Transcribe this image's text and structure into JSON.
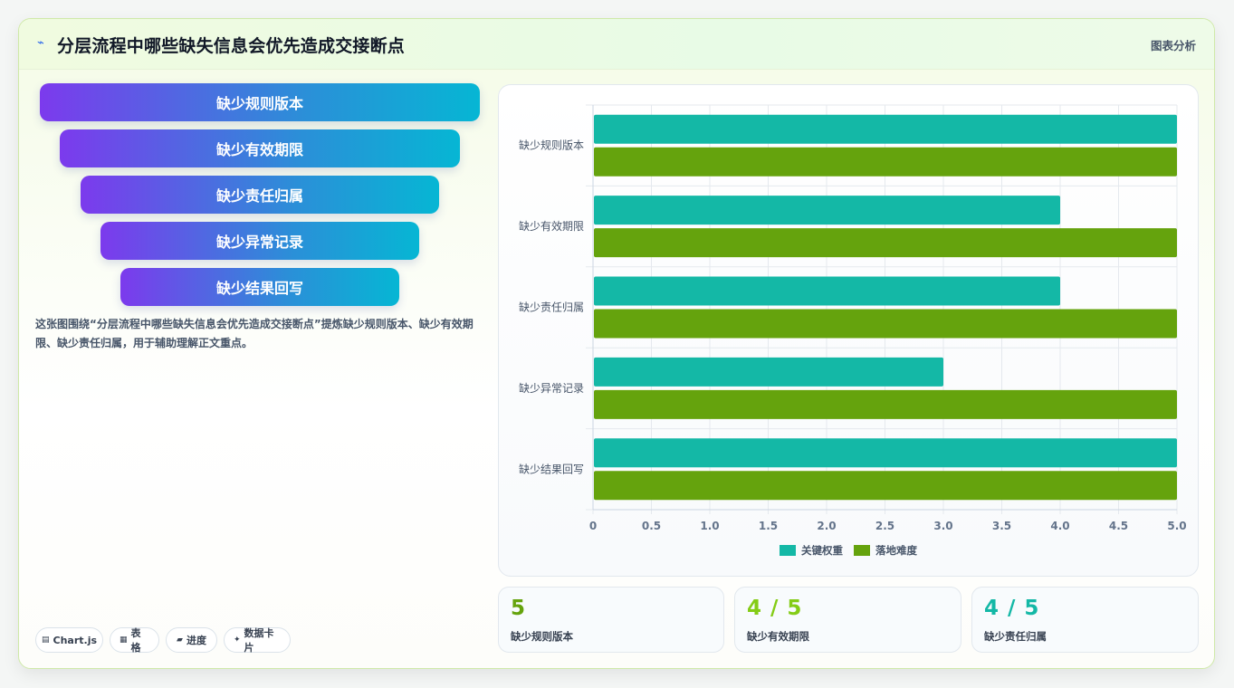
{
  "header": {
    "icon": "chart-line-icon",
    "title": "分层流程中哪些缺失信息会优先造成交接断点",
    "tag": "图表分析"
  },
  "funnel": [
    {
      "label": "缺少规则版本"
    },
    {
      "label": "缺少有效期限"
    },
    {
      "label": "缺少责任归属"
    },
    {
      "label": "缺少异常记录"
    },
    {
      "label": "缺少结果回写"
    }
  ],
  "description": "这张图围绕“分层流程中哪些缺失信息会优先造成交接断点”提炼缺少规则版本、缺少有效期限、缺少责任归属，用于辅助理解正文重点。",
  "pills": [
    {
      "icon": "▤",
      "label": "Chart.js"
    },
    {
      "icon": "▦",
      "label": "表格"
    },
    {
      "icon": "▰",
      "label": "进度"
    },
    {
      "icon": "✦",
      "label": "数据卡片"
    }
  ],
  "chart_data": {
    "type": "bar",
    "orientation": "horizontal",
    "categories": [
      "缺少规则版本",
      "缺少有效期限",
      "缺少责任归属",
      "缺少异常记录",
      "缺少结果回写"
    ],
    "series": [
      {
        "name": "关键权重",
        "values": [
          5,
          4,
          4,
          3,
          5
        ],
        "color": "#14b8a6"
      },
      {
        "name": "落地难度",
        "values": [
          5,
          5,
          5,
          5,
          5
        ],
        "color": "#65a30d"
      }
    ],
    "xlim": [
      0,
      5
    ],
    "xticks": [
      "0",
      "0.5",
      "1.0",
      "1.5",
      "2.0",
      "2.5",
      "3.0",
      "3.5",
      "4.0",
      "4.5",
      "5.0"
    ],
    "grid": true,
    "legend": "bottom"
  },
  "stats": [
    {
      "value": "5",
      "label": "缺少规则版本",
      "color": "#65a30d"
    },
    {
      "value": "4 / 5",
      "label": "缺少有效期限",
      "color": "#84cc16"
    },
    {
      "value": "4 / 5",
      "label": "缺少责任归属",
      "color": "#14b8a6"
    }
  ]
}
